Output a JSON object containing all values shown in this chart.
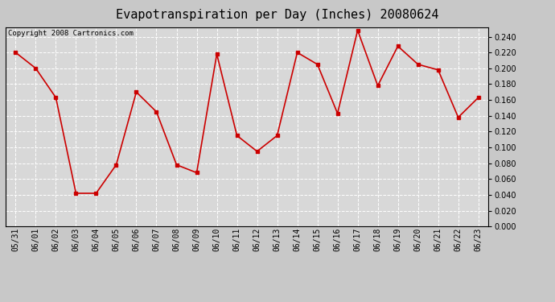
{
  "title": "Evapotranspiration per Day (Inches) 20080624",
  "copyright_text": "Copyright 2008 Cartronics.com",
  "dates": [
    "05/31",
    "06/01",
    "06/02",
    "06/03",
    "06/04",
    "06/05",
    "06/06",
    "06/07",
    "06/08",
    "06/09",
    "06/10",
    "06/11",
    "06/12",
    "06/13",
    "06/14",
    "06/15",
    "06/16",
    "06/17",
    "06/18",
    "06/19",
    "06/20",
    "06/21",
    "06/22",
    "06/23"
  ],
  "values": [
    0.22,
    0.2,
    0.163,
    0.042,
    0.042,
    0.078,
    0.17,
    0.145,
    0.078,
    0.068,
    0.218,
    0.115,
    0.095,
    0.115,
    0.22,
    0.205,
    0.143,
    0.248,
    0.178,
    0.228,
    0.205,
    0.198,
    0.138,
    0.163
  ],
  "ylim": [
    0.0,
    0.252
  ],
  "yticks": [
    0.0,
    0.02,
    0.04,
    0.06,
    0.08,
    0.1,
    0.12,
    0.14,
    0.16,
    0.18,
    0.2,
    0.22,
    0.24
  ],
  "line_color": "#cc0000",
  "marker": "s",
  "marker_size": 2.5,
  "bg_color": "#c8c8c8",
  "plot_bg_color": "#d8d8d8",
  "grid_color": "#ffffff",
  "title_fontsize": 11,
  "tick_fontsize": 7,
  "copyright_fontsize": 6.5
}
